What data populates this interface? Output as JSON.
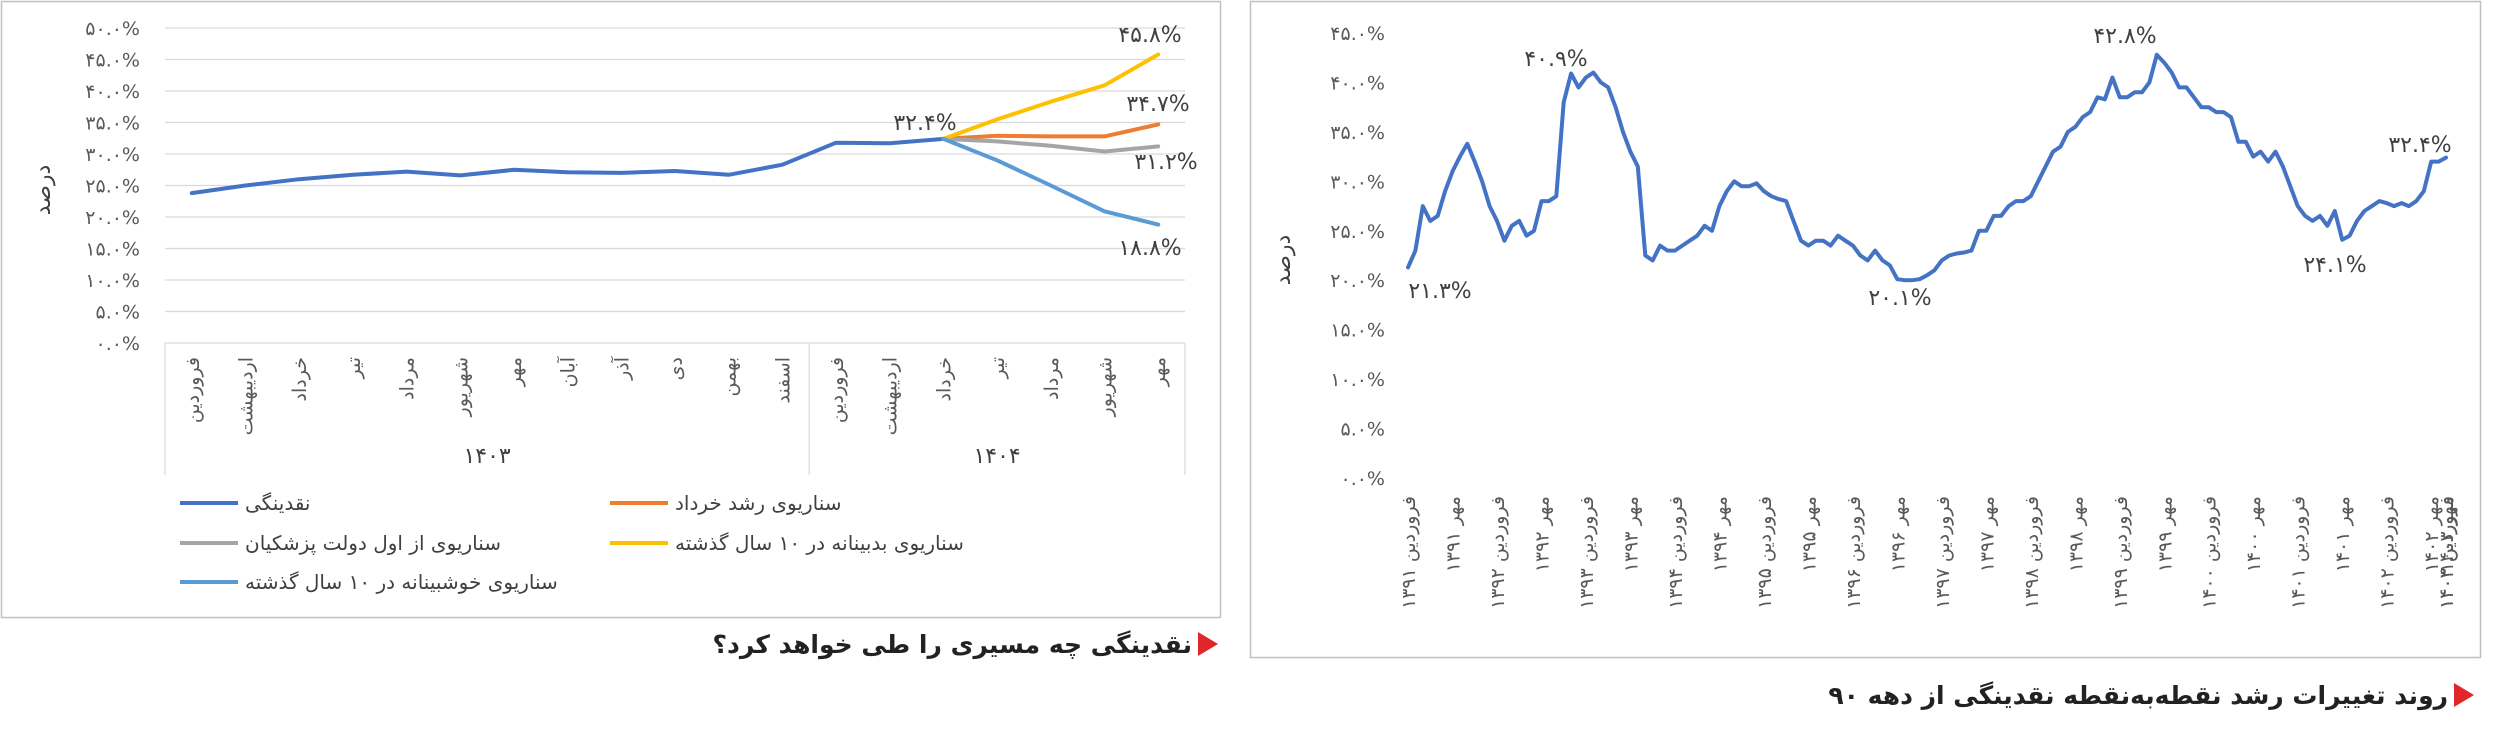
{
  "left_chart": {
    "caption": "نقدینگی چه مسیری را طی خواهد کرد؟",
    "ylabel": "درصد",
    "year_groups": [
      "۱۴۰۳",
      "۱۴۰۴"
    ],
    "legend": {
      "liquidity": "نقدینگی",
      "khordad": "سناریوی رشد خرداد",
      "pezeshkian": "سناریوی از اول دولت پزشکیان",
      "pessimistic": "سناریوی بدبینانه در ۱۰ سال گذشته",
      "optimistic": "سناریوی خوشبینانه در ۱۰ سال گذشته"
    },
    "annotations": {
      "junction": "۳۲.۴%",
      "pessimistic_end": "۴۵.۸%",
      "khordad_end": "۳۴.۷%",
      "pezeshkian_end": "۳۱.۲%",
      "optimistic_end": "۱۸.۸%"
    }
  },
  "right_chart": {
    "caption": "روند تغییرات رشد نقطه‌به‌نقطه نقدینگی از دهه ۹۰",
    "ylabel": "درصد",
    "annotations": {
      "start": "۲۱.۳%",
      "peak1": "۴۰.۹%",
      "low": "۲۰.۱%",
      "peak2": "۴۲.۸%",
      "dip": "۲۴.۱%",
      "end": "۳۲.۴%"
    }
  },
  "chart_data": [
    {
      "type": "line",
      "title": "نقدینگی چه مسیری را طی خواهد کرد؟",
      "ylabel": "درصد",
      "ylim": [
        0,
        50
      ],
      "ytick_step": 5,
      "ytick_labels": [
        "۰.۰%",
        "۵.۰%",
        "۱۰.۰%",
        "۱۵.۰%",
        "۲۰.۰%",
        "۲۵.۰%",
        "۳۰.۰%",
        "۳۵.۰%",
        "۴۰.۰%",
        "۴۵.۰%",
        "۵۰.۰%"
      ],
      "categories": [
        "فروردین",
        "اردیبهشت",
        "خرداد",
        "تیر",
        "مرداد",
        "شهریور",
        "مهر",
        "آبان",
        "آذر",
        "دی",
        "بهمن",
        "اسفند",
        "فروردین",
        "اردیبهشت",
        "خرداد",
        "تیر",
        "مرداد",
        "شهریور",
        "مهر"
      ],
      "groups": [
        {
          "name": "۱۴۰۳",
          "count": 12
        },
        {
          "name": "۱۴۰۴",
          "count": 7
        }
      ],
      "grid": true,
      "legend_position": "bottom",
      "series": [
        {
          "name": "نقدینگی",
          "color": "#4472C4",
          "values": [
            23.8,
            25.0,
            26.0,
            26.7,
            27.2,
            26.6,
            27.5,
            27.1,
            27.0,
            27.3,
            26.7,
            28.3,
            31.8,
            31.7,
            32.4,
            null,
            null,
            null,
            null
          ]
        },
        {
          "name": "سناریوی رشد خرداد",
          "color": "#ED7D31",
          "values": [
            null,
            null,
            null,
            null,
            null,
            null,
            null,
            null,
            null,
            null,
            null,
            null,
            null,
            null,
            32.4,
            32.9,
            32.8,
            32.8,
            34.7
          ]
        },
        {
          "name": "سناریوی از اول دولت پزشکیان",
          "color": "#A5A5A5",
          "values": [
            null,
            null,
            null,
            null,
            null,
            null,
            null,
            null,
            null,
            null,
            null,
            null,
            null,
            null,
            32.4,
            32.0,
            31.3,
            30.4,
            31.2
          ]
        },
        {
          "name": "سناریوی بدبینانه در ۱۰ سال گذشته",
          "color": "#FFC000",
          "values": [
            null,
            null,
            null,
            null,
            null,
            null,
            null,
            null,
            null,
            null,
            null,
            null,
            null,
            null,
            32.4,
            35.5,
            38.3,
            40.9,
            45.8
          ]
        },
        {
          "name": "سناریوی خوشبینانه در ۱۰ سال گذشته",
          "color": "#5B9BD5",
          "values": [
            null,
            null,
            null,
            null,
            null,
            null,
            null,
            null,
            null,
            null,
            null,
            null,
            null,
            null,
            32.4,
            29.0,
            25.0,
            20.9,
            18.8
          ]
        }
      ]
    },
    {
      "type": "line",
      "title": "روند تغییرات رشد نقطه‌به‌نقطه نقدینگی از دهه ۹۰",
      "ylabel": "درصد",
      "ylim": [
        0,
        45
      ],
      "ytick_step": 5,
      "ytick_labels": [
        "۰.۰%",
        "۵.۰%",
        "۱۰.۰%",
        "۱۵.۰%",
        "۲۰.۰%",
        "۲۵.۰%",
        "۳۰.۰%",
        "۳۵.۰%",
        "۴۰.۰%",
        "۴۵.۰%"
      ],
      "tick_labels": [
        "فروردین ۱۳۹۱",
        "مهر ۱۳۹۱",
        "فروردین ۱۳۹۲",
        "مهر ۱۳۹۲",
        "فروردین ۱۳۹۳",
        "مهر ۱۳۹۳",
        "فروردین ۱۳۹۴",
        "مهر ۱۳۹۴",
        "فروردین ۱۳۹۵",
        "مهر ۱۳۹۵",
        "فروردین ۱۳۹۶",
        "مهر ۱۳۹۶",
        "فروردین ۱۳۹۷",
        "مهر ۱۳۹۷",
        "فروردین ۱۳۹۸",
        "مهر ۱۳۹۸",
        "فروردین ۱۳۹۹",
        "مهر ۱۳۹۹",
        "فروردین ۱۴۰۰",
        "مهر ۱۴۰۰",
        "فروردین ۱۴۰۱",
        "مهر ۱۴۰۱",
        "فروردین ۱۴۰۲",
        "مهر ۱۴۰۲",
        "فروردین ۱۴۰۳",
        "مهر ۱۴۰۳",
        "فروردین ۱۴۰۴"
      ],
      "tick_every_months": 6,
      "grid": false,
      "series": [
        {
          "name": "نقدینگی",
          "color": "#4472C4",
          "values": [
            21.3,
            23.0,
            27.5,
            26.0,
            26.5,
            29.0,
            31.0,
            32.5,
            33.8,
            32.0,
            30.0,
            27.5,
            26.0,
            24.0,
            25.5,
            26.0,
            24.5,
            25.0,
            28.0,
            28.0,
            28.5,
            38.0,
            40.9,
            39.5,
            40.5,
            41.0,
            40.0,
            39.5,
            37.5,
            35.0,
            33.0,
            31.5,
            22.5,
            22.0,
            23.5,
            23.0,
            23.0,
            23.5,
            24.0,
            24.5,
            25.5,
            25.0,
            27.5,
            29.0,
            30.0,
            29.5,
            29.5,
            29.8,
            29.0,
            28.5,
            28.2,
            28.0,
            26.0,
            24.0,
            23.5,
            24.0,
            24.0,
            23.5,
            24.5,
            24.0,
            23.5,
            22.5,
            22.0,
            23.0,
            22.0,
            21.5,
            20.1,
            20.0,
            20.0,
            20.1,
            20.5,
            21.0,
            22.0,
            22.5,
            22.7,
            22.8,
            23.0,
            25.0,
            25.0,
            26.5,
            26.5,
            27.5,
            28.0,
            28.0,
            28.5,
            30.0,
            31.5,
            33.0,
            33.5,
            35.0,
            35.5,
            36.5,
            37.0,
            38.5,
            38.3,
            40.5,
            38.5,
            38.5,
            39.0,
            39.0,
            40.0,
            42.8,
            42.0,
            41.0,
            39.5,
            39.5,
            38.5,
            37.5,
            37.5,
            37.0,
            37.0,
            36.5,
            34.0,
            34.0,
            32.5,
            33.0,
            32.0,
            33.0,
            31.5,
            29.5,
            27.5,
            26.5,
            26.0,
            26.5,
            25.5,
            27.0,
            24.1,
            24.5,
            26.0,
            27.0,
            27.5,
            28.0,
            27.8,
            27.5,
            27.8,
            27.5,
            28.0,
            29.0,
            32.0,
            32.0,
            32.4
          ]
        }
      ]
    }
  ]
}
